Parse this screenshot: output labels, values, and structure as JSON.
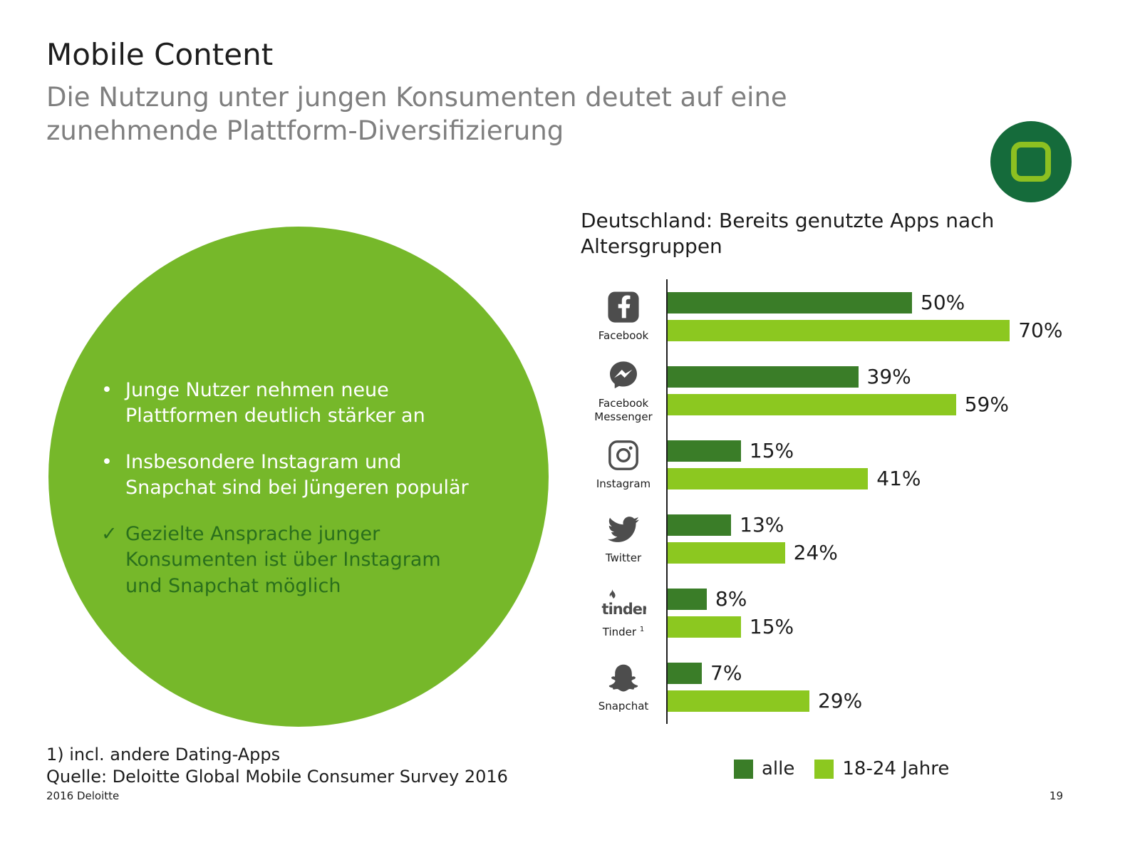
{
  "slide": {
    "title": "Mobile Content",
    "subtitle": "Die Nutzung unter jungen Konsumenten deutet auf eine\nzunehmende Plattform-Diversifizierung",
    "footnote1": "1) incl. andere Dating-Apps",
    "footnote2": "Quelle: Deloitte Global Mobile Consumer Survey 2016",
    "footer_left": "2016 Deloitte",
    "page_number": "19"
  },
  "bubble": {
    "bullets": [
      {
        "marker": "•",
        "text": "Junge Nutzer nehmen neue\nPlattformen deutlich stärker an",
        "style": "white"
      },
      {
        "marker": "•",
        "text": "Insbesondere Instagram und\nSnapchat sind bei Jüngeren populär",
        "style": "white"
      },
      {
        "marker": "✓",
        "text": "Gezielte Ansprache junger\nKonsumenten ist über Instagram\nund Snapchat möglich",
        "style": "dark-green"
      }
    ]
  },
  "chart_data": {
    "type": "bar",
    "orientation": "horizontal",
    "title": "Deutschland: Bereits genutzte Apps nach\nAltersgruppen",
    "categories": [
      "Facebook",
      "Facebook Messenger",
      "Instagram",
      "Twitter",
      "Tinder",
      "Snapchat"
    ],
    "category_footnotes": [
      "",
      "",
      "",
      "",
      "1",
      ""
    ],
    "icons": [
      "facebook",
      "messenger",
      "instagram",
      "twitter",
      "tinder",
      "snapchat"
    ],
    "series": [
      {
        "name": "alle",
        "color": "#3a7d28",
        "values": [
          50,
          39,
          15,
          13,
          8,
          7
        ]
      },
      {
        "name": "18-24 Jahre",
        "color": "#8cc820",
        "values": [
          70,
          59,
          41,
          24,
          15,
          29
        ]
      }
    ],
    "value_suffix": "%",
    "xlim": [
      0,
      73
    ],
    "grid": false,
    "legend_position": "bottom-right"
  },
  "logos": {
    "tinder_wordmark": "tinder"
  },
  "colors": {
    "bar_dark_green": "#3a7d28",
    "bar_light_green": "#8cc820",
    "bubble_green": "#76b82a",
    "check_text_green": "#2a6f1c",
    "logo_circle_green": "#156b3b",
    "logo_square_green": "#8dc021",
    "icon_gray": "#4d4d4d",
    "subtitle_gray": "#7f7f7f"
  }
}
